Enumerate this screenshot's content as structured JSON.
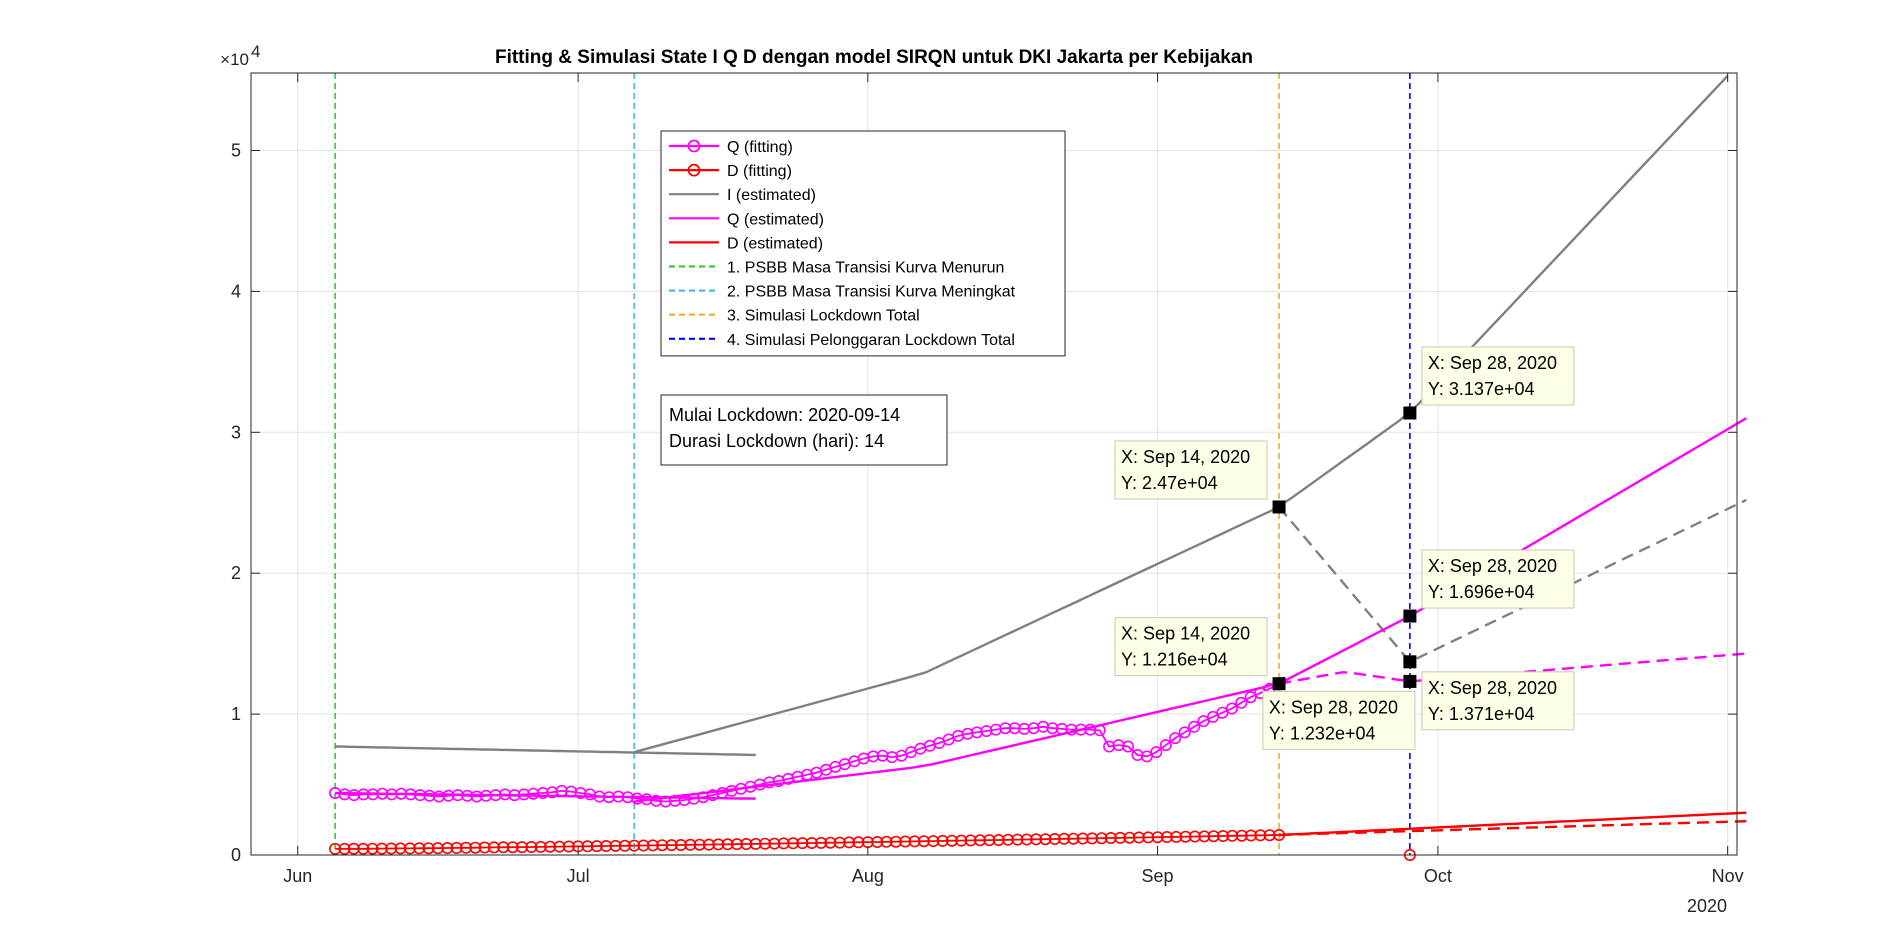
{
  "chart_data": {
    "type": "line",
    "title": "Fitting & Simulasi State  I Q D dengan model SIRQN untuk DKI Jakarta per Kebijakan",
    "xlabel": "",
    "ylabel": "",
    "y_exponent_label": "×10",
    "y_exponent_power": "4",
    "x_year_label": "2020",
    "xlim": [
      "2020-05-27",
      "2020-11-02"
    ],
    "ylim": [
      0,
      55500
    ],
    "yticks": [
      0,
      10000,
      20000,
      30000,
      40000,
      50000
    ],
    "ytick_labels": [
      "0",
      "1",
      "2",
      "3",
      "4",
      "5"
    ],
    "xticks": [
      {
        "date": "2020-06-01",
        "label": "Jun"
      },
      {
        "date": "2020-07-01",
        "label": "Jul"
      },
      {
        "date": "2020-08-01",
        "label": "Aug"
      },
      {
        "date": "2020-09-01",
        "label": "Sep"
      },
      {
        "date": "2020-10-01",
        "label": "Oct"
      },
      {
        "date": "2020-11-01",
        "label": "Nov"
      }
    ],
    "grid": true,
    "legend_position": "top-center",
    "series": [
      {
        "name": "Q (fitting)",
        "color": "#ff00ff",
        "style": "line-circle",
        "x_start": "2020-06-05",
        "x_end": "2020-09-14",
        "values": [
          4400,
          4300,
          4250,
          4300,
          4300,
          4350,
          4300,
          4350,
          4300,
          4250,
          4200,
          4150,
          4200,
          4250,
          4200,
          4150,
          4200,
          4250,
          4300,
          4250,
          4300,
          4350,
          4400,
          4450,
          4550,
          4500,
          4400,
          4300,
          4150,
          4100,
          4150,
          4100,
          4000,
          3950,
          3850,
          3800,
          3850,
          3900,
          4000,
          4100,
          4250,
          4400,
          4550,
          4700,
          4850,
          5000,
          5150,
          5250,
          5400,
          5550,
          5700,
          5850,
          6050,
          6250,
          6450,
          6650,
          6850,
          7000,
          7050,
          6950,
          7050,
          7300,
          7550,
          7750,
          7950,
          8200,
          8450,
          8600,
          8700,
          8800,
          8900,
          9000,
          9000,
          8950,
          9000,
          9100,
          9000,
          8950,
          8900,
          8900,
          8900,
          8850,
          7700,
          7800,
          7700,
          7100,
          7000,
          7300,
          7800,
          8300,
          8700,
          9100,
          9500,
          9800,
          10100,
          10400,
          10800,
          11200,
          11500,
          11800,
          12100
        ]
      },
      {
        "name": "D (fitting)",
        "color": "#ff0000",
        "style": "line-circle",
        "x_start": "2020-06-05",
        "x_end": "2020-09-14",
        "y_start": 430,
        "y_end": 1420,
        "extra_points": [
          {
            "x": "2020-09-28",
            "y": 0
          }
        ]
      },
      {
        "name": "I (estimated)",
        "color": "#808080",
        "style": "solid",
        "segments": [
          {
            "phase": "1. PSBB Masa Transisi Kurva Menurun",
            "x": [
              "2020-06-05",
              "2020-07-20"
            ],
            "y": [
              7700,
              7100
            ]
          },
          {
            "phase": "2. PSBB Masa Transisi Kurva Meningkat",
            "x": [
              "2020-07-07",
              "2020-08-07",
              "2020-09-14",
              "2020-09-28",
              "2020-11-01"
            ],
            "y": [
              7300,
              12900,
              24700,
              31370,
              55300
            ]
          },
          {
            "phase": "3. Simulasi Lockdown Total",
            "dashed": true,
            "x": [
              "2020-09-14",
              "2020-09-28",
              "2020-11-03"
            ],
            "y": [
              24700,
              13710,
              25200
            ]
          }
        ]
      },
      {
        "name": "Q (estimated)",
        "color": "#ff00ff",
        "style": "solid",
        "segments": [
          {
            "phase": "1. PSBB Masa Transisi Kurva Menurun",
            "x": [
              "2020-06-05",
              "2020-07-20"
            ],
            "y": [
              4400,
              4000
            ]
          },
          {
            "phase": "2. PSBB Masa Transisi Kurva Meningkat",
            "x": [
              "2020-07-07",
              "2020-08-07",
              "2020-09-14",
              "2020-09-28",
              "2020-11-03"
            ],
            "y": [
              3800,
              6300,
              12160,
              16960,
              31000
            ]
          },
          {
            "phase": "3. Simulasi Lockdown Total",
            "dashed": true,
            "x": [
              "2020-09-14",
              "2020-09-21",
              "2020-09-28",
              "2020-11-03"
            ],
            "y": [
              12160,
              13000,
              12320,
              14300
            ]
          }
        ]
      },
      {
        "name": "D (estimated)",
        "color": "#ff0000",
        "style": "solid",
        "segments": [
          {
            "phase": "2. PSBB Masa Transisi Kurva Meningkat",
            "x": [
              "2020-09-14",
              "2020-11-03"
            ],
            "y": [
              1420,
              3000
            ]
          },
          {
            "phase": "3. Simulasi Lockdown Total",
            "dashed": true,
            "x": [
              "2020-09-14",
              "2020-11-03"
            ],
            "y": [
              1420,
              2400
            ]
          }
        ]
      }
    ],
    "vlines": [
      {
        "label": "1. PSBB Masa Transisi Kurva Menurun",
        "date": "2020-06-05",
        "color": "#33cc33"
      },
      {
        "label": "2. PSBB Masa Transisi Kurva Meningkat",
        "date": "2020-07-07",
        "color": "#4db8e6"
      },
      {
        "label": "3. Simulasi Lockdown Total",
        "date": "2020-09-14",
        "color": "#e6b030"
      },
      {
        "label": "4. Simulasi Pelonggaran Lockdown Total",
        "date": "2020-09-28",
        "color": "#0000ff"
      }
    ],
    "legend": [
      {
        "label": "Q (fitting)",
        "color": "#ff00ff",
        "style": "line-circle"
      },
      {
        "label": "D (fitting)",
        "color": "#ff0000",
        "style": "line-circle"
      },
      {
        "label": "I (estimated)",
        "color": "#808080",
        "style": "solid"
      },
      {
        "label": "Q (estimated)",
        "color": "#ff00ff",
        "style": "solid"
      },
      {
        "label": "D (estimated)",
        "color": "#ff0000",
        "style": "solid"
      },
      {
        "label": "1. PSBB Masa Transisi Kurva Menurun",
        "color": "#33cc33",
        "style": "dashed"
      },
      {
        "label": "2. PSBB Masa Transisi Kurva Meningkat",
        "color": "#4db8e6",
        "style": "dashed"
      },
      {
        "label": "3. Simulasi Lockdown Total",
        "color": "#e6b030",
        "style": "dashed"
      },
      {
        "label": "4. Simulasi Pelonggaran Lockdown Total",
        "color": "#0000ff",
        "style": "dashed"
      }
    ],
    "info_box": [
      "Mulai Lockdown: 2020-09-14",
      "Durasi Lockdown (hari): 14"
    ],
    "datatips": [
      {
        "x": "2020-09-14",
        "y": 24700,
        "lines": [
          "X: Sep 14, 2020",
          "Y: 2.47e+04"
        ],
        "side": "left"
      },
      {
        "x": "2020-09-28",
        "y": 31370,
        "lines": [
          "X: Sep 28, 2020",
          "Y: 3.137e+04"
        ],
        "side": "right"
      },
      {
        "x": "2020-09-28",
        "y": 16960,
        "lines": [
          "X: Sep 28, 2020",
          "Y: 1.696e+04"
        ],
        "side": "right"
      },
      {
        "x": "2020-09-14",
        "y": 12160,
        "lines": [
          "X: Sep 14, 2020",
          "Y: 1.216e+04"
        ],
        "side": "left"
      },
      {
        "x": "2020-09-28",
        "y": 12320,
        "lines": [
          "X: Sep 28, 2020",
          "Y: 1.232e+04"
        ],
        "side": "below-left"
      },
      {
        "x": "2020-09-28",
        "y": 13710,
        "lines": [
          "X: Sep 28, 2020",
          "Y: 1.371e+04"
        ],
        "side": "right-below"
      }
    ]
  }
}
